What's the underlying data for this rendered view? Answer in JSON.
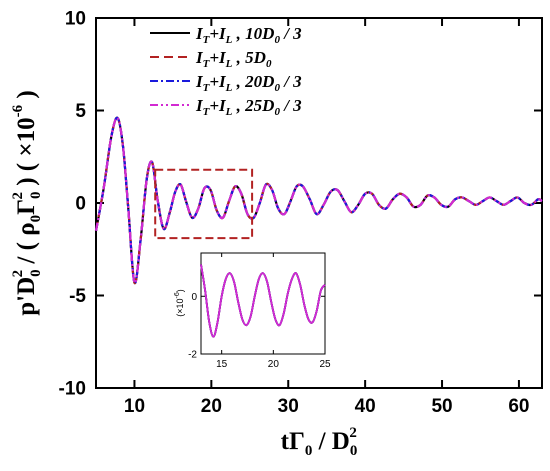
{
  "chart_data": [
    {
      "type": "line",
      "xlim": [
        5,
        63
      ],
      "ylim": [
        -10,
        10
      ],
      "xticks": [
        10,
        20,
        30,
        40,
        50,
        60
      ],
      "xtick_labels": [
        "10",
        "20",
        "30",
        "40",
        "50",
        "60"
      ],
      "yticks": [
        -10,
        -5,
        0,
        5,
        10
      ],
      "ytick_labels": [
        "-10",
        "-5",
        "0",
        "5",
        "10"
      ],
      "xlabel": "tΓ0 / D0²",
      "ylabel": "p'D0² / (ρ0Γ0²) (×10⁻⁶)",
      "legend_placement": "top",
      "grid": false,
      "highlight_box": {
        "x": [
          12.7,
          25.3
        ],
        "y": [
          -1.9,
          1.8
        ],
        "color": "#b22222"
      },
      "x": [
        5,
        6,
        7,
        7.8,
        8.5,
        9.2,
        10.0,
        10.8,
        11.6,
        12.3,
        13.0,
        13.8,
        14.6,
        15.3,
        16.0,
        16.7,
        17.5,
        18.3,
        19.1,
        19.9,
        20.7,
        21.5,
        22.3,
        23.1,
        23.9,
        24.7,
        25.5,
        26.3,
        27.1,
        27.9,
        28.7,
        29.5,
        30.3,
        31.1,
        31.9,
        32.8,
        33.7,
        34.6,
        35.5,
        36.4,
        37.3,
        38.2,
        39.1,
        40.0,
        40.9,
        41.8,
        42.7,
        43.6,
        44.5,
        45.4,
        46.3,
        47.2,
        48.1,
        49.0,
        49.9,
        50.8,
        51.7,
        52.6,
        53.5,
        54.4,
        55.3,
        56.2,
        57.1,
        58.0,
        58.9,
        59.8,
        60.7,
        61.6,
        62.5,
        63.0
      ],
      "series": [
        {
          "name": "IT+IL , 10D0 / 3",
          "color": "#000000",
          "dash": "solid",
          "values": [
            -1.5,
            0.8,
            3.6,
            4.6,
            3.1,
            -0.3,
            -4.3,
            -2.0,
            1.3,
            2.2,
            0.2,
            -1.4,
            -0.5,
            0.6,
            1.0,
            0.1,
            -0.8,
            -0.3,
            0.8,
            0.7,
            -0.4,
            -0.8,
            0.1,
            0.9,
            0.5,
            -0.6,
            -0.8,
            0.0,
            1.0,
            0.7,
            -0.3,
            -0.6,
            0.1,
            0.9,
            0.9,
            0.2,
            -0.6,
            -0.1,
            0.6,
            0.7,
            0.1,
            -0.5,
            -0.1,
            0.5,
            0.5,
            -0.1,
            -0.3,
            0.2,
            0.5,
            0.3,
            -0.2,
            -0.1,
            0.4,
            0.3,
            -0.1,
            -0.2,
            0.2,
            0.3,
            0.1,
            -0.1,
            0.1,
            0.3,
            0.1,
            -0.1,
            0.1,
            0.3,
            0.0,
            -0.1,
            0.2,
            0.1
          ]
        },
        {
          "name": "IT+IL , 5D0",
          "color": "#b22222",
          "dash": "long-dash",
          "values": [
            -1.5,
            0.8,
            3.6,
            4.6,
            3.1,
            -0.3,
            -4.3,
            -2.0,
            1.3,
            2.2,
            0.2,
            -1.4,
            -0.5,
            0.6,
            1.0,
            0.1,
            -0.8,
            -0.3,
            0.8,
            0.7,
            -0.4,
            -0.8,
            0.1,
            0.9,
            0.5,
            -0.6,
            -0.8,
            0.0,
            1.0,
            0.7,
            -0.3,
            -0.6,
            0.1,
            0.9,
            0.9,
            0.2,
            -0.6,
            -0.1,
            0.6,
            0.7,
            0.1,
            -0.5,
            -0.1,
            0.5,
            0.5,
            -0.1,
            -0.3,
            0.2,
            0.5,
            0.3,
            -0.2,
            -0.1,
            0.4,
            0.3,
            -0.1,
            -0.2,
            0.2,
            0.3,
            0.1,
            -0.1,
            0.1,
            0.3,
            0.1,
            -0.1,
            0.1,
            0.3,
            0.0,
            -0.1,
            0.2,
            0.1
          ]
        },
        {
          "name": "IT+IL , 20D0 / 3",
          "color": "#1a1adc",
          "dash": "dash-dot",
          "values": [
            -1.5,
            0.8,
            3.6,
            4.6,
            3.1,
            -0.3,
            -4.3,
            -2.0,
            1.3,
            2.2,
            0.2,
            -1.4,
            -0.5,
            0.6,
            1.0,
            0.1,
            -0.8,
            -0.3,
            0.8,
            0.7,
            -0.4,
            -0.8,
            0.1,
            0.9,
            0.5,
            -0.6,
            -0.8,
            0.0,
            1.0,
            0.7,
            -0.3,
            -0.6,
            0.1,
            0.9,
            0.9,
            0.2,
            -0.6,
            -0.1,
            0.6,
            0.7,
            0.1,
            -0.5,
            -0.1,
            0.5,
            0.5,
            -0.1,
            -0.3,
            0.2,
            0.5,
            0.3,
            -0.2,
            -0.1,
            0.4,
            0.3,
            -0.1,
            -0.2,
            0.2,
            0.3,
            0.1,
            -0.1,
            0.1,
            0.3,
            0.1,
            -0.1,
            0.1,
            0.3,
            0.0,
            -0.1,
            0.2,
            0.1
          ]
        },
        {
          "name": "IT+IL , 25D0 / 3",
          "color": "#d22ad2",
          "dash": "dash-dot-dot",
          "values": [
            -1.5,
            0.8,
            3.6,
            4.6,
            3.1,
            -0.3,
            -4.3,
            -2.0,
            1.3,
            2.2,
            0.2,
            -1.4,
            -0.5,
            0.6,
            1.0,
            0.1,
            -0.8,
            -0.3,
            0.8,
            0.7,
            -0.4,
            -0.8,
            0.1,
            0.9,
            0.5,
            -0.6,
            -0.8,
            0.0,
            1.0,
            0.7,
            -0.3,
            -0.6,
            0.1,
            0.9,
            0.9,
            0.2,
            -0.6,
            -0.1,
            0.6,
            0.7,
            0.1,
            -0.5,
            -0.1,
            0.5,
            0.5,
            -0.1,
            -0.3,
            0.2,
            0.5,
            0.3,
            -0.2,
            -0.1,
            0.4,
            0.3,
            -0.1,
            -0.2,
            0.2,
            0.3,
            0.1,
            -0.1,
            0.1,
            0.3,
            0.1,
            -0.1,
            0.1,
            0.3,
            0.0,
            -0.1,
            0.2,
            0.1
          ]
        }
      ]
    },
    {
      "type": "line",
      "role": "inset",
      "xlim": [
        13,
        25
      ],
      "ylim": [
        -2,
        1.5
      ],
      "xticks": [
        15,
        20,
        25
      ],
      "xtick_labels": [
        "15",
        "20",
        "25"
      ],
      "yticks": [
        -2,
        0
      ],
      "ytick_labels": [
        "-2",
        "0"
      ],
      "ylabel": "(×10⁻⁶)",
      "x": [
        13.0,
        13.4,
        13.8,
        14.2,
        14.6,
        15.0,
        15.4,
        15.8,
        16.2,
        16.6,
        17.0,
        17.4,
        17.8,
        18.2,
        18.6,
        19.0,
        19.4,
        19.8,
        20.2,
        20.6,
        21.0,
        21.4,
        21.8,
        22.2,
        22.6,
        23.0,
        23.4,
        23.8,
        24.2,
        24.6,
        25.0
      ],
      "series": [
        {
          "name": "IT+IL , 10D0 / 3",
          "color": "#000000",
          "values": [
            1.1,
            0.2,
            -0.9,
            -1.4,
            -0.9,
            0.0,
            0.6,
            0.8,
            0.5,
            -0.2,
            -0.8,
            -1.0,
            -0.7,
            0.0,
            0.6,
            0.8,
            0.5,
            -0.2,
            -0.8,
            -1.0,
            -0.6,
            0.1,
            0.6,
            0.8,
            0.4,
            -0.3,
            -0.8,
            -0.9,
            -0.5,
            0.2,
            0.4
          ]
        },
        {
          "name": "IT+IL , 5D0",
          "color": "#b22222",
          "values": [
            1.1,
            0.2,
            -0.9,
            -1.4,
            -0.9,
            0.0,
            0.6,
            0.8,
            0.5,
            -0.2,
            -0.8,
            -1.0,
            -0.7,
            0.0,
            0.6,
            0.8,
            0.5,
            -0.2,
            -0.8,
            -1.0,
            -0.6,
            0.1,
            0.6,
            0.8,
            0.4,
            -0.3,
            -0.8,
            -0.9,
            -0.5,
            0.2,
            0.4
          ]
        },
        {
          "name": "IT+IL , 20D0 / 3",
          "color": "#1a1adc",
          "values": [
            1.1,
            0.2,
            -0.9,
            -1.4,
            -0.9,
            0.0,
            0.6,
            0.8,
            0.5,
            -0.2,
            -0.8,
            -1.0,
            -0.7,
            0.0,
            0.6,
            0.8,
            0.5,
            -0.2,
            -0.8,
            -1.0,
            -0.6,
            0.1,
            0.6,
            0.8,
            0.4,
            -0.3,
            -0.8,
            -0.9,
            -0.5,
            0.2,
            0.4
          ]
        },
        {
          "name": "IT+IL , 25D0 / 3",
          "color": "#d22ad2",
          "values": [
            1.1,
            0.2,
            -0.9,
            -1.4,
            -0.9,
            0.0,
            0.6,
            0.8,
            0.5,
            -0.2,
            -0.8,
            -1.0,
            -0.7,
            0.0,
            0.6,
            0.8,
            0.5,
            -0.2,
            -0.8,
            -1.0,
            -0.6,
            0.1,
            0.6,
            0.8,
            0.4,
            -0.3,
            -0.8,
            -0.9,
            -0.5,
            0.2,
            0.4
          ]
        }
      ]
    }
  ]
}
